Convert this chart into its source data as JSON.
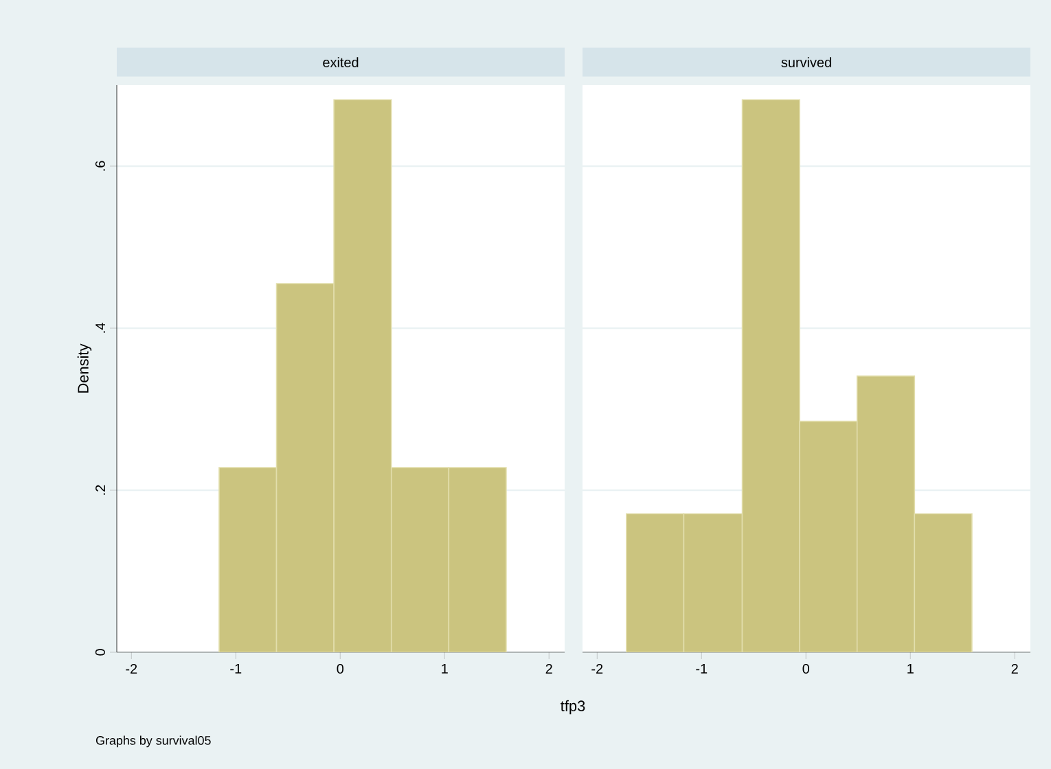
{
  "chart_data": [
    {
      "type": "histogram",
      "title": "exited",
      "xlabel": "tfp3",
      "ylabel": "Density",
      "annotations": [
        "Graphs by survival05"
      ],
      "bins": [
        -1.16,
        -0.61,
        -0.06,
        0.49,
        1.04,
        1.59
      ],
      "values": [
        0.228,
        0.455,
        0.682,
        0.228,
        0.228
      ],
      "color": "#cbc47f",
      "xlim": [
        -2.14,
        2.15
      ],
      "ylim": [
        0,
        0.7
      ],
      "xticks": [
        -2,
        -1,
        0,
        1,
        2
      ],
      "yticks": [
        0,
        {
          "value": 0.2,
          "label": ".2"
        },
        {
          "value": 0.4,
          "label": ".4"
        },
        {
          "value": 0.6,
          "label": ".6"
        }
      ],
      "grid": "y"
    },
    {
      "type": "histogram",
      "title": "survived",
      "bins": [
        -1.72,
        -1.17,
        -0.61,
        -0.06,
        0.49,
        1.04,
        1.59
      ],
      "values": [
        0.171,
        0.171,
        0.682,
        0.285,
        0.341,
        0.171
      ],
      "color": "#cbc47f",
      "xlim": [
        -2.14,
        2.15
      ],
      "ylim": [
        0,
        0.7
      ],
      "xticks": [
        -2,
        -1,
        0,
        1,
        2
      ],
      "yticks": [
        {
          "value": 0,
          "label": null
        },
        {
          "value": 0.2,
          "label": null
        },
        {
          "value": 0.4,
          "label": null
        },
        {
          "value": 0.6,
          "label": null
        }
      ],
      "grid": "y",
      "tick_labels": "x"
    }
  ]
}
